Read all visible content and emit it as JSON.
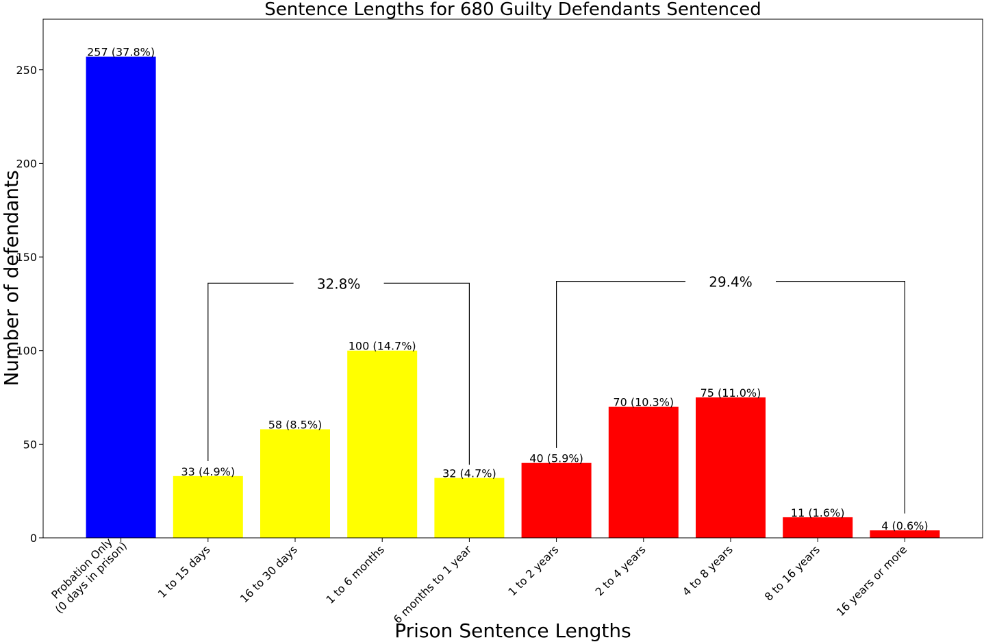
{
  "chart_data": {
    "type": "bar",
    "title": "Sentence Lengths for 680 Guilty Defendants Sentenced",
    "xlabel": "Prison Sentence Lengths",
    "ylabel": "Number of defendants",
    "ylim": [
      0,
      277
    ],
    "yticks": [
      0,
      50,
      100,
      150,
      200,
      250
    ],
    "grid": false,
    "categories": [
      "Probation Only\n(0 days in prison)",
      "1 to 15 days",
      "16 to 30 days",
      "1 to 6 months",
      "6 months to 1 year",
      "1 to 2 years",
      "2 to 4 years",
      "4 to 8 years",
      "8 to 16 years",
      "16 years or more"
    ],
    "values": [
      257,
      33,
      58,
      100,
      32,
      40,
      70,
      75,
      11,
      4
    ],
    "data_labels": [
      "257 (37.8%)",
      "33 (4.9%)",
      "58 (8.5%)",
      "100 (14.7%)",
      "32 (4.7%)",
      "40 (5.9%)",
      "70 (10.3%)",
      "75 (11.0%)",
      "11 (1.6%)",
      "4 (0.6%)"
    ],
    "colors": [
      "#0000ff",
      "#ffff00",
      "#ffff00",
      "#ffff00",
      "#ffff00",
      "#ff0000",
      "#ff0000",
      "#ff0000",
      "#ff0000",
      "#ff0000"
    ],
    "annotations": [
      {
        "text": "32.8%",
        "from_index": 1,
        "to_index": 4,
        "y_left": 41,
        "y_right": 39,
        "y_top": 136
      },
      {
        "text": "29.4%",
        "from_index": 5,
        "to_index": 9,
        "y_left": 48,
        "y_right": 13,
        "y_top": 137
      }
    ]
  }
}
